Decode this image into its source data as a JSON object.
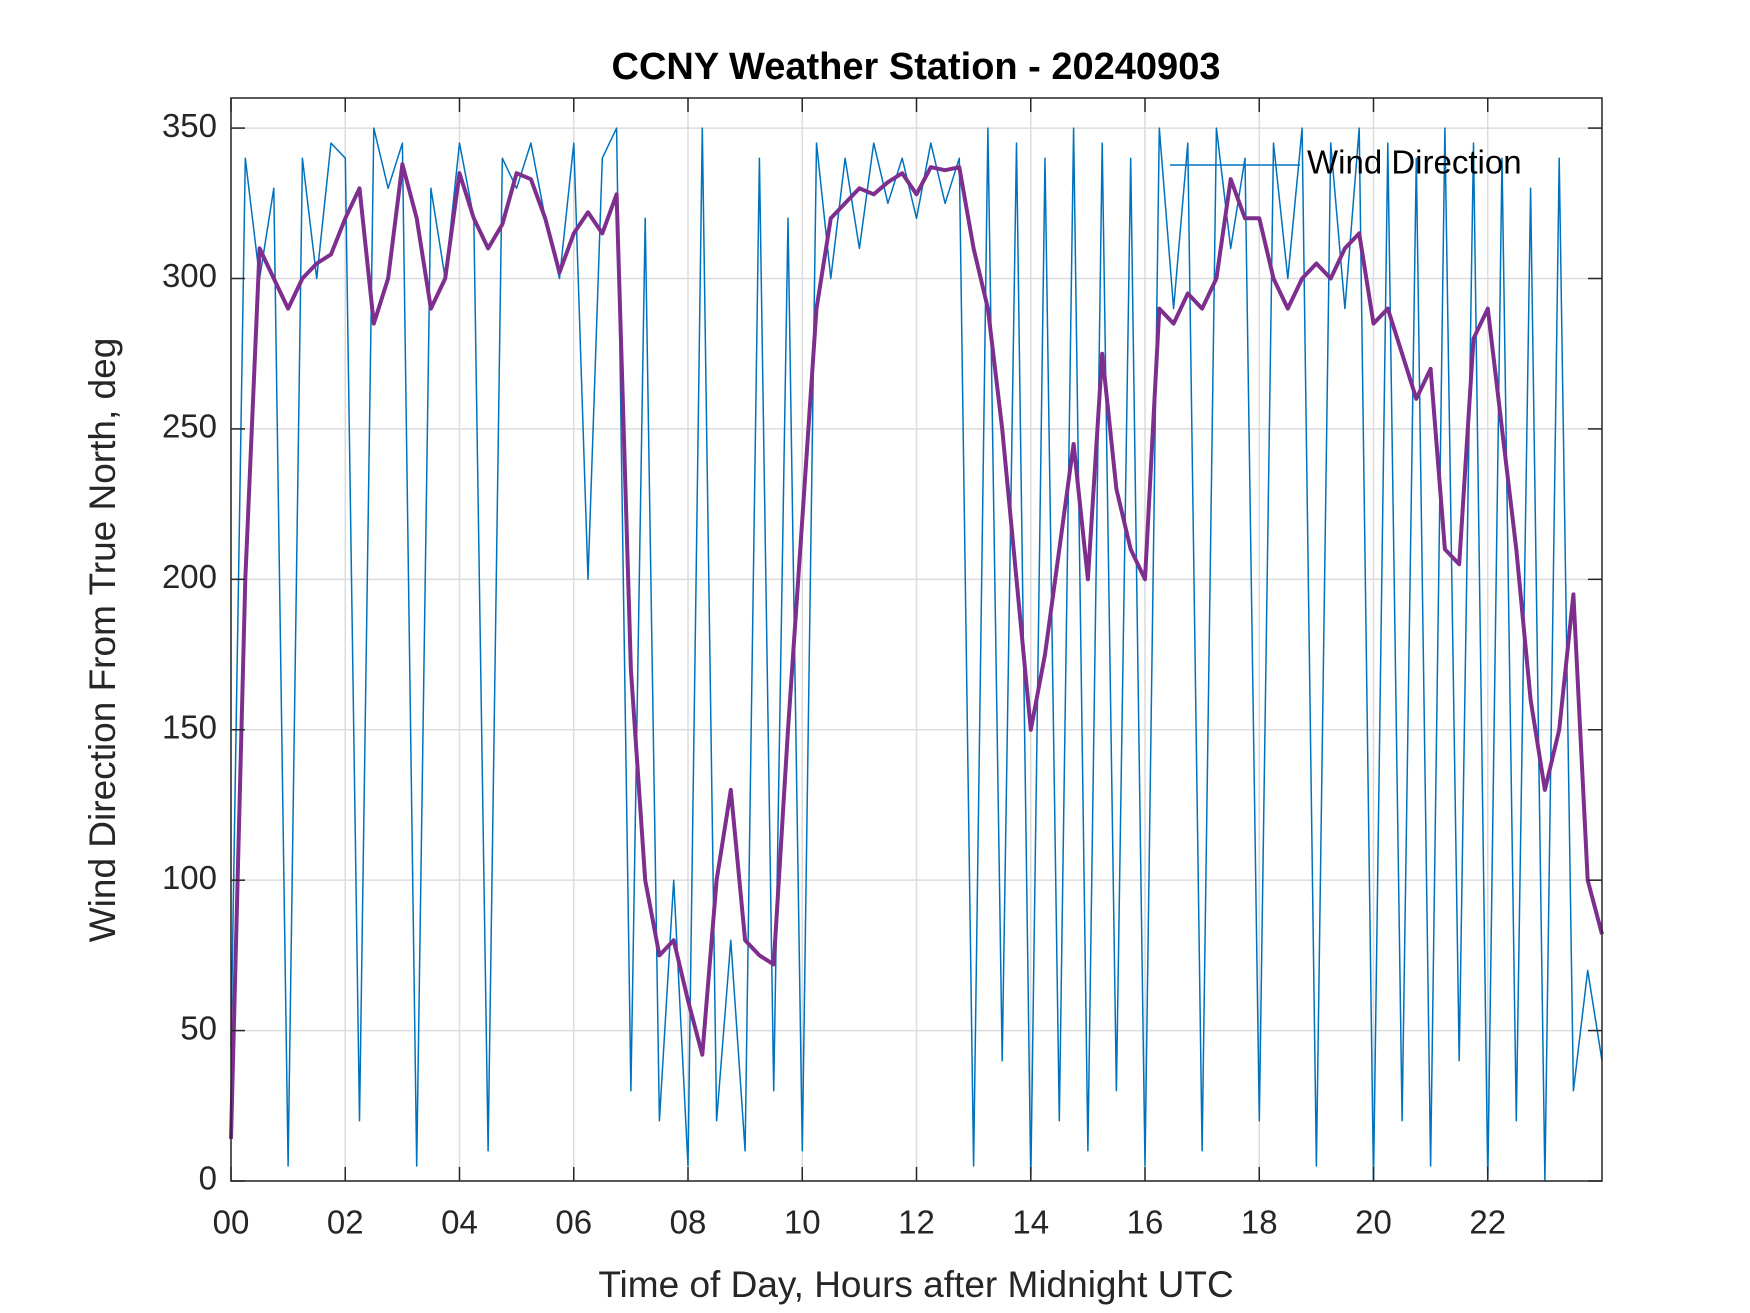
{
  "chart_data": {
    "type": "line",
    "title": "CCNY Weather Station - 20240903",
    "xlabel": "Time of Day, Hours after Midnight UTC",
    "ylabel": "Wind Direction From True North, deg",
    "x": [
      0,
      0.25,
      0.5,
      0.75,
      1,
      1.25,
      1.5,
      1.75,
      2,
      2.25,
      2.5,
      2.75,
      3,
      3.25,
      3.5,
      3.75,
      4,
      4.25,
      4.5,
      4.75,
      5,
      5.25,
      5.5,
      5.75,
      6,
      6.25,
      6.5,
      6.75,
      7,
      7.25,
      7.5,
      7.75,
      8,
      8.25,
      8.5,
      8.75,
      9,
      9.25,
      9.5,
      9.75,
      10,
      10.25,
      10.5,
      10.75,
      11,
      11.25,
      11.5,
      11.75,
      12,
      12.25,
      12.5,
      12.75,
      13,
      13.25,
      13.5,
      13.75,
      14,
      14.25,
      14.5,
      14.75,
      15,
      15.25,
      15.5,
      15.75,
      16,
      16.25,
      16.5,
      16.75,
      17,
      17.25,
      17.5,
      17.75,
      18,
      18.25,
      18.5,
      18.75,
      19,
      19.25,
      19.5,
      19.75,
      20,
      20.25,
      20.5,
      20.75,
      21,
      21.25,
      21.5,
      21.75,
      22,
      22.25,
      22.5,
      22.75,
      23,
      23.25,
      23.5,
      23.75,
      24
    ],
    "series": [
      {
        "name": "Wind Direction",
        "color": "#0072bd",
        "width": 1.5,
        "values": [
          45,
          340,
          300,
          330,
          5,
          340,
          300,
          345,
          340,
          20,
          350,
          330,
          345,
          5,
          330,
          300,
          345,
          320,
          10,
          340,
          330,
          345,
          320,
          300,
          345,
          200,
          340,
          350,
          30,
          320,
          20,
          100,
          5,
          350,
          20,
          80,
          10,
          340,
          30,
          320,
          10,
          345,
          300,
          340,
          310,
          345,
          325,
          340,
          320,
          345,
          325,
          340,
          5,
          350,
          40,
          345,
          0,
          340,
          20,
          350,
          10,
          345,
          30,
          340,
          5,
          350,
          290,
          345,
          10,
          350,
          310,
          340,
          20,
          345,
          300,
          350,
          5,
          345,
          290,
          350,
          0,
          345,
          20,
          340,
          5,
          350,
          40,
          345,
          0,
          340,
          20,
          330,
          0,
          340,
          30,
          70,
          40
        ]
      },
      {
        "color": "#7e2f8e",
        "width": 4,
        "values": [
          14,
          200,
          310,
          300,
          290,
          300,
          305,
          308,
          320,
          330,
          285,
          300,
          338,
          320,
          290,
          300,
          335,
          320,
          310,
          318,
          335,
          333,
          320,
          302,
          315,
          322,
          315,
          328,
          170,
          100,
          75,
          80,
          60,
          42,
          100,
          130,
          80,
          75,
          72,
          150,
          220,
          290,
          320,
          325,
          330,
          328,
          332,
          335,
          328,
          337,
          336,
          337,
          310,
          290,
          250,
          200,
          150,
          175,
          210,
          245,
          200,
          275,
          230,
          210,
          200,
          290,
          285,
          295,
          290,
          300,
          333,
          320,
          320,
          300,
          290,
          300,
          305,
          300,
          310,
          315,
          285,
          290,
          275,
          260,
          270,
          210,
          205,
          280,
          290,
          250,
          210,
          160,
          130,
          150,
          195,
          100,
          82
        ]
      }
    ],
    "xlim": [
      0,
      24
    ],
    "xticks": [
      {
        "value": 0,
        "label": "00"
      },
      {
        "value": 2,
        "label": "02"
      },
      {
        "value": 4,
        "label": "04"
      },
      {
        "value": 6,
        "label": "06"
      },
      {
        "value": 8,
        "label": "08"
      },
      {
        "value": 10,
        "label": "10"
      },
      {
        "value": 12,
        "label": "12"
      },
      {
        "value": 14,
        "label": "14"
      },
      {
        "value": 16,
        "label": "16"
      },
      {
        "value": 18,
        "label": "18"
      },
      {
        "value": 20,
        "label": "20"
      },
      {
        "value": 22,
        "label": "22"
      }
    ],
    "ylim": [
      0,
      360
    ],
    "yticks": [
      0,
      50,
      100,
      150,
      200,
      250,
      300,
      350
    ],
    "grid": true,
    "legend": "upper-right"
  }
}
